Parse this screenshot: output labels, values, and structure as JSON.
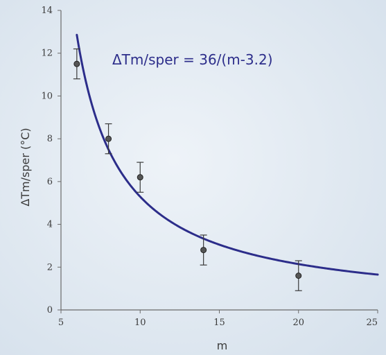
{
  "chart_data": {
    "type": "scatter",
    "title": "",
    "xlabel": "m",
    "ylabel": "ΔTm/sper (°C)",
    "xlim": [
      5,
      25
    ],
    "ylim": [
      0,
      14
    ],
    "x_ticks": [
      "5",
      "10",
      "15",
      "20",
      "25"
    ],
    "y_ticks": [
      "0",
      "2",
      "4",
      "6",
      "8",
      "10",
      "12",
      "14"
    ],
    "grid": false,
    "annotation": "ΔTm/sper = 36/(m-3.2)",
    "series": [
      {
        "type": "scatter",
        "color": "#3a3a3a",
        "points": [
          {
            "x": 6,
            "y": 11.5,
            "err": 0.7
          },
          {
            "x": 8,
            "y": 8.0,
            "err": 0.7
          },
          {
            "x": 10,
            "y": 6.2,
            "err": 0.7
          },
          {
            "x": 14,
            "y": 2.8,
            "err": 0.7
          },
          {
            "x": 20,
            "y": 1.6,
            "err": 0.7
          }
        ]
      },
      {
        "type": "line",
        "color": "#2c2d8a",
        "function": {
          "a": 36,
          "b": 3.2
        },
        "x_range": [
          6,
          25
        ]
      }
    ],
    "colors": {
      "background": "#dfe8f1",
      "axis": "#6a6a6a",
      "curve": "#2c2d8a",
      "marker": "#3a3a3a"
    }
  }
}
